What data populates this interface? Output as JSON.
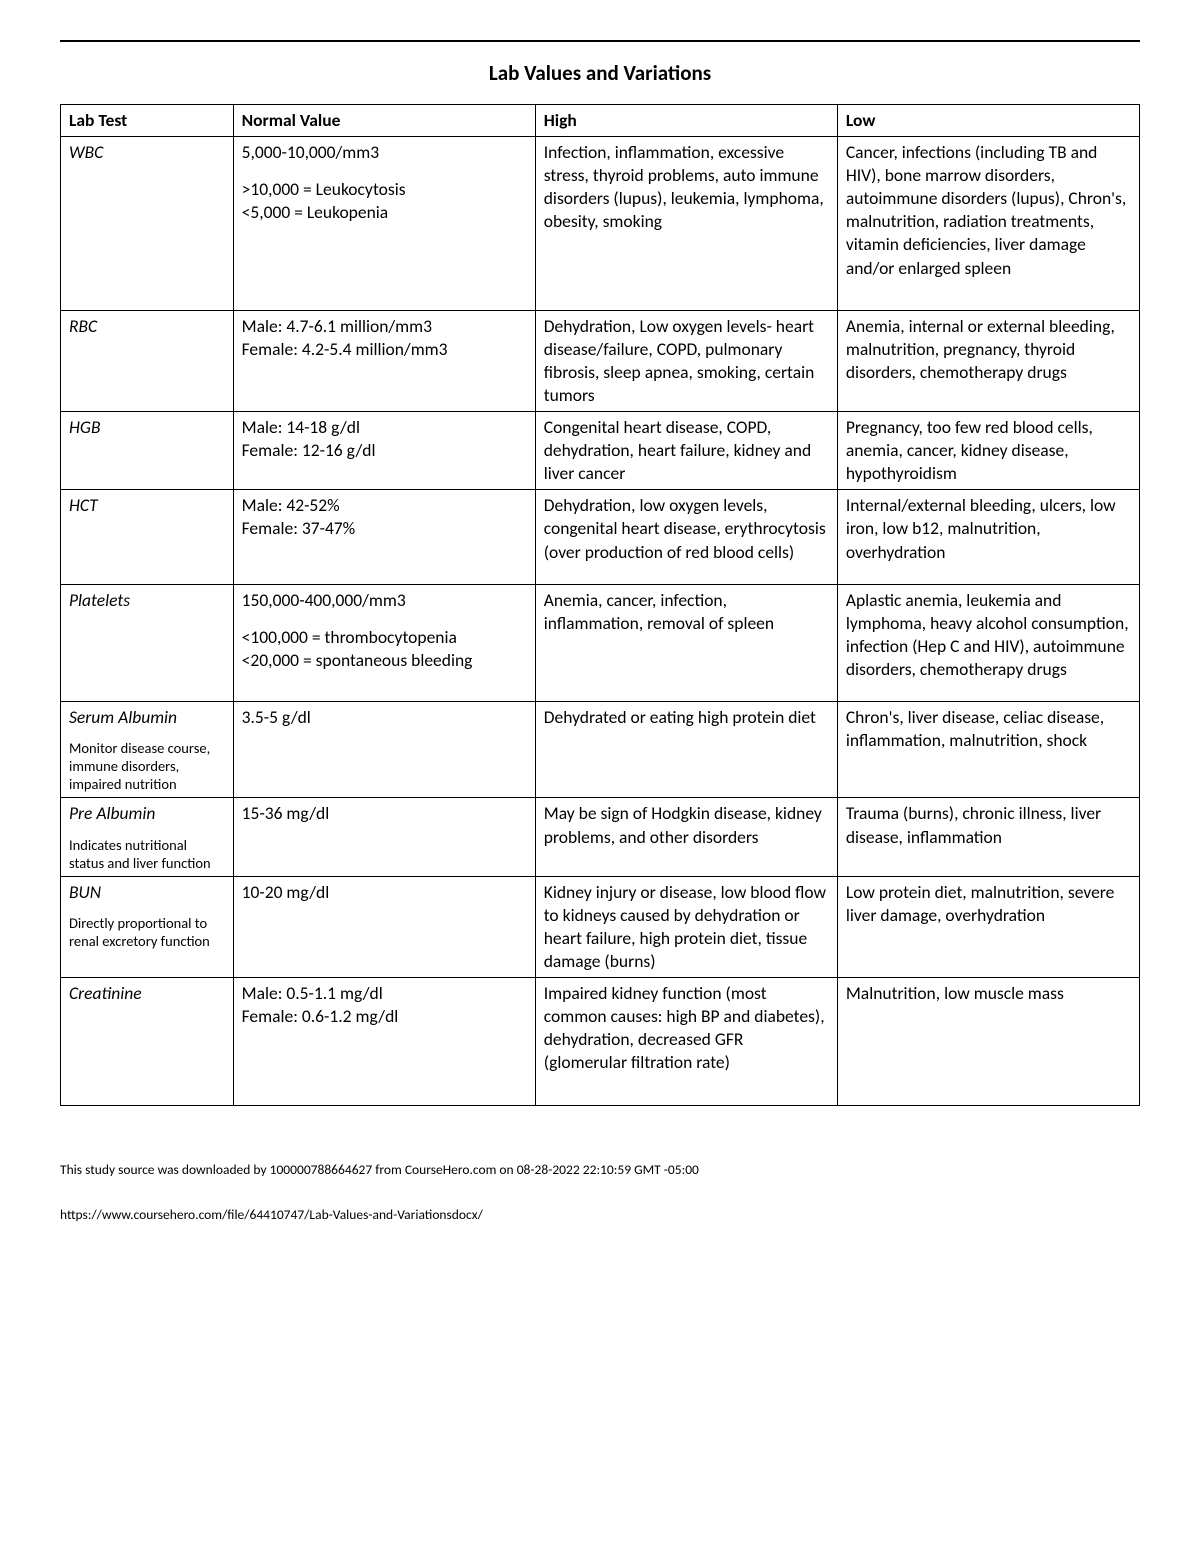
{
  "title": "Lab Values and Variations",
  "columns": [
    "Lab Test",
    "Normal Value",
    "High",
    "Low"
  ],
  "rows": [
    {
      "test": "WBC",
      "sub": "",
      "normal_main": "5,000-10,000/mm3",
      "normal_sub": ">10,000 = Leukocytosis\n<5,000 = Leukopenia",
      "high": "Infection, inflammation, excessive stress, thyroid problems, auto immune disorders (lupus), leukemia, lymphoma, obesity, smoking",
      "low": "Cancer, infections (including TB and HIV), bone marrow disorders, autoimmune disorders (lupus), Chron's, malnutrition, radiation treatments, vitamin deficiencies, liver damage and/or enlarged spleen",
      "pad": "pad-bottom"
    },
    {
      "test": "RBC",
      "sub": "",
      "normal_main": "Male: 4.7-6.1 million/mm3\nFemale: 4.2-5.4 million/mm3",
      "normal_sub": "",
      "high": "Dehydration, Low oxygen levels- heart disease/failure, COPD, pulmonary fibrosis, sleep apnea, smoking, certain tumors",
      "low": "Anemia, internal or external bleeding, malnutrition, pregnancy, thyroid disorders, chemotherapy drugs",
      "pad": ""
    },
    {
      "test": "HGB",
      "sub": "",
      "normal_main": "Male: 14-18 g/dl\nFemale: 12-16 g/dl",
      "normal_sub": "",
      "high": "Congenital heart disease, COPD, dehydration, heart failure, kidney and liver cancer",
      "low": "Pregnancy, too few red blood cells, anemia, cancer, kidney disease, hypothyroidism",
      "pad": ""
    },
    {
      "test": "HCT",
      "sub": "",
      "normal_main": "Male: 42-52%\nFemale: 37-47%",
      "normal_sub": "",
      "high": "Dehydration, low oxygen levels, congenital heart disease, erythrocytosis (over production of red blood cells)",
      "low": "Internal/external bleeding, ulcers, low iron, low b12, malnutrition, overhydration",
      "pad": "pad-bottom-sm"
    },
    {
      "test": "Platelets",
      "sub": "",
      "normal_main": "150,000-400,000/mm3",
      "normal_sub": "<100,000 = thrombocytopenia\n<20,000 = spontaneous bleeding",
      "high": "Anemia, cancer, infection, inflammation, removal of spleen",
      "low": "Aplastic anemia, leukemia and lymphoma, heavy alcohol consumption, infection (Hep C and HIV), autoimmune disorders, chemotherapy drugs",
      "pad": "pad-bottom-sm"
    },
    {
      "test": "Serum Albumin",
      "sub": "Monitor disease course, immune disorders, impaired nutrition",
      "normal_main": "3.5-5 g/dl",
      "normal_sub": "",
      "high": "Dehydrated or eating high protein diet",
      "low": "Chron's, liver disease, celiac disease, inflammation, malnutrition, shock",
      "pad": ""
    },
    {
      "test": "Pre Albumin",
      "sub": "Indicates nutritional status and liver function",
      "normal_main": "15-36 mg/dl",
      "normal_sub": "",
      "high": "May be sign of Hodgkin disease, kidney problems, and other disorders",
      "low": "Trauma (burns), chronic illness, liver disease, inflammation",
      "pad": ""
    },
    {
      "test": "BUN",
      "sub": "Directly proportional to renal excretory function",
      "normal_main": "10-20 mg/dl",
      "normal_sub": "",
      "high": "Kidney injury or disease, low blood flow to kidneys caused by dehydration or heart failure, high protein diet, tissue damage (burns)",
      "low": "Low protein diet, malnutrition, severe liver damage, overhydration",
      "pad": ""
    },
    {
      "test": "Creatinine",
      "sub": "",
      "normal_main": "Male: 0.5-1.1 mg/dl\nFemale: 0.6-1.2 mg/dl",
      "normal_sub": "",
      "high": "Impaired kidney function (most common causes: high BP and diabetes), dehydration, decreased GFR (glomerular filtration rate)",
      "low": "Malnutrition, low muscle mass",
      "pad": "pad-bottom"
    }
  ],
  "footer_note": "This study source was downloaded by 100000788664627 from CourseHero.com on 08-28-2022 22:10:59 GMT -05:00",
  "footer_link": "https://www.coursehero.com/file/64410747/Lab-Values-and-Variationsdocx/"
}
